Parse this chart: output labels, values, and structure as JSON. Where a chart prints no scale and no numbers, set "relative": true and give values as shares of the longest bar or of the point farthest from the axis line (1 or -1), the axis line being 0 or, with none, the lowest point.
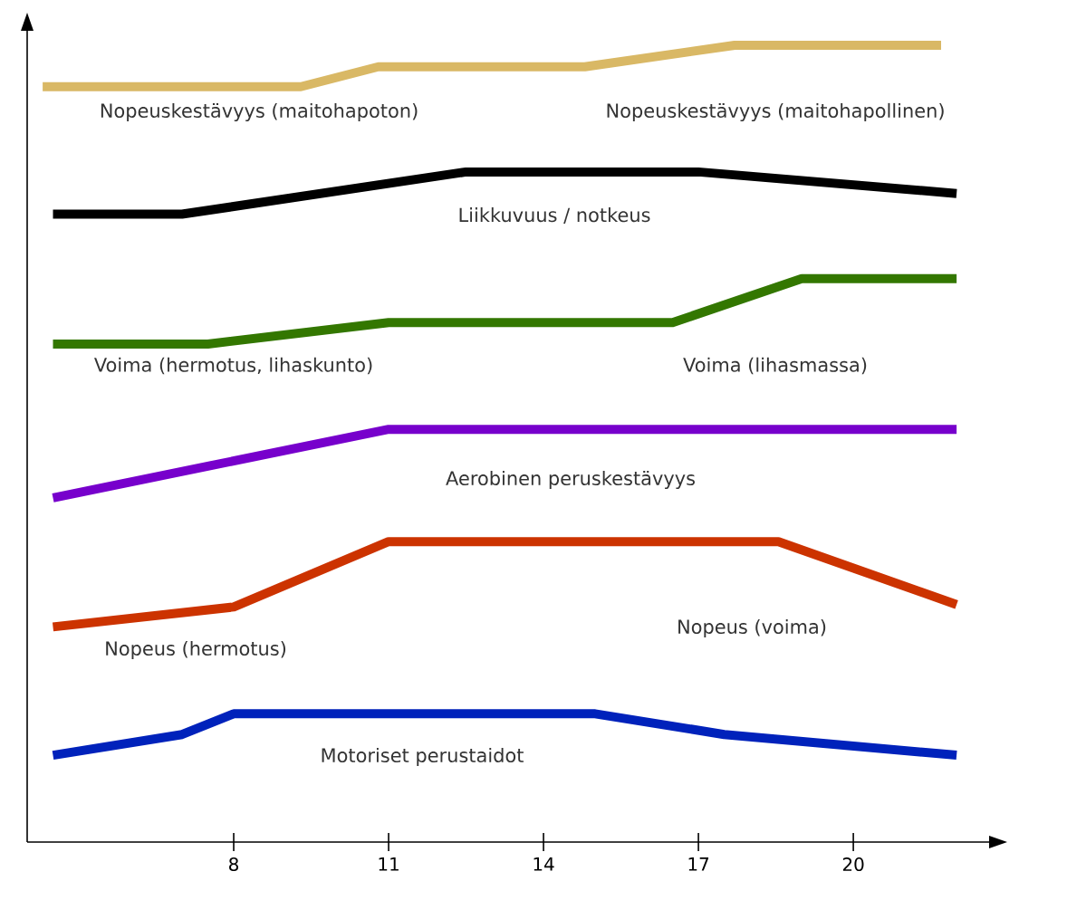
{
  "chart_data": {
    "type": "line",
    "relative": true,
    "xlim": [
      4.0,
      22.7
    ],
    "xticks": [
      8,
      11,
      14,
      17,
      20
    ],
    "tick_labels": "x",
    "marker": "none",
    "line_style": "solid",
    "series": [
      {
        "color": "#d9b865",
        "x": [
          4.3,
          9.3,
          10.8,
          14.8,
          17.7,
          21.7
        ],
        "values": [
          0.948,
          0.948,
          0.973,
          0.973,
          1,
          1
        ]
      },
      {
        "color": "#000000",
        "x": [
          4.5,
          7.0,
          12.5,
          17.0,
          22.0
        ],
        "values": [
          0.788,
          0.788,
          0.841,
          0.841,
          0.814
        ]
      },
      {
        "color": "#337700",
        "x": [
          4.5,
          7.5,
          11.0,
          16.5,
          19.0,
          22.0
        ],
        "values": [
          0.625,
          0.625,
          0.652,
          0.652,
          0.707,
          0.707
        ]
      },
      {
        "color": "#7700cc",
        "x": [
          4.5,
          11.0,
          22.0
        ],
        "values": [
          0.432,
          0.518,
          0.518
        ]
      },
      {
        "color": "#cc3300",
        "x": [
          4.5,
          8.0,
          11.0,
          18.55,
          22.0
        ],
        "values": [
          0.27,
          0.295,
          0.377,
          0.377,
          0.298
        ]
      },
      {
        "color": "#0022bb",
        "x": [
          4.5,
          7.0,
          8.0,
          15.0,
          17.5,
          22.0
        ],
        "values": [
          0.109,
          0.135,
          0.161,
          0.161,
          0.135,
          0.109
        ]
      }
    ],
    "annotations": [
      "Nopeuskestävyys (maitohapoton)",
      "Nopeuskestävyys (maitohapollinen)",
      "Liikkuvuus / notkeus",
      "Voima (hermotus, lihaskunto)",
      "Voima (lihasmassa)",
      "Aerobinen peruskestävyys",
      "Nopeus (hermotus)",
      "Nopeus (voima)",
      "Motoriset perustaidot"
    ]
  }
}
